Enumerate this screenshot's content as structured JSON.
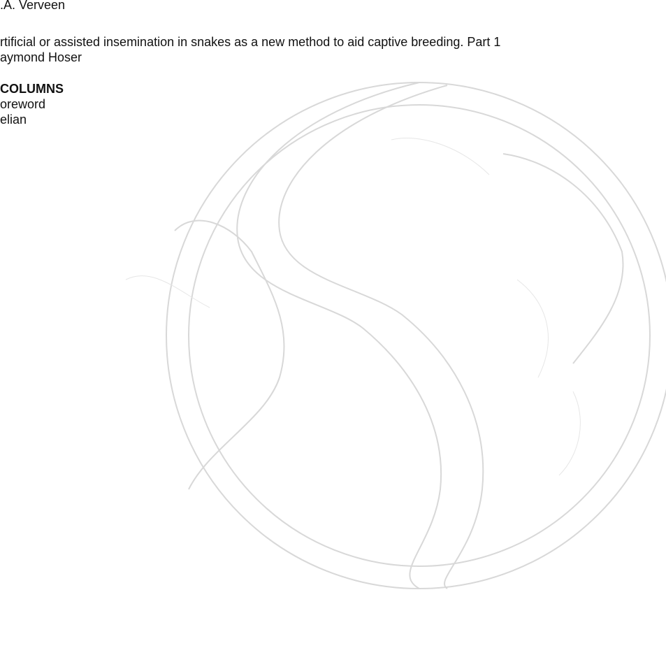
{
  "document": {
    "author_line": ".A. Verveen",
    "article": {
      "title": "rtificial or assisted insemination in snakes as a new method to aid captive breeding. Part 1",
      "author": "aymond Hoser"
    },
    "columns": {
      "heading": "COLUMNS",
      "items": [
        "oreword",
        "elian"
      ]
    }
  }
}
